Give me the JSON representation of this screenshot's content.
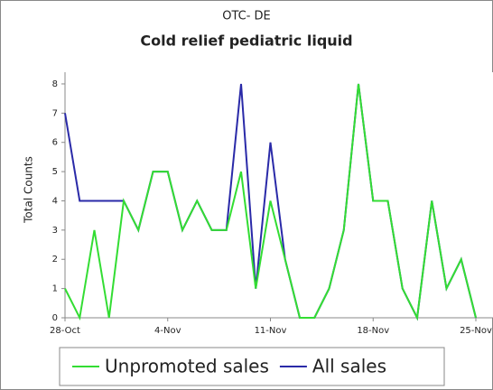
{
  "chart_data": {
    "type": "line",
    "title": "OTC- DE",
    "subtitle": "Cold relief pediatric liquid",
    "y_label": "Total Counts",
    "categories": [
      "28-Oct",
      null,
      null,
      null,
      null,
      null,
      null,
      "4-Nov",
      null,
      null,
      null,
      null,
      null,
      null,
      "11-Nov",
      null,
      null,
      null,
      null,
      null,
      null,
      "18-Nov",
      null,
      null,
      null,
      null,
      null,
      null,
      "25-Nov"
    ],
    "series": [
      {
        "name": "Unpromoted sales",
        "color": "#33dd33",
        "values": [
          1,
          0,
          3,
          0,
          4,
          3,
          5,
          5,
          3,
          4,
          3,
          3,
          5,
          1,
          4,
          2,
          0,
          0,
          1,
          3,
          8,
          4,
          4,
          1,
          0,
          4,
          1,
          2,
          0
        ]
      },
      {
        "name": "All sales",
        "color": "#2a2aa8",
        "values": [
          7,
          4,
          4,
          4,
          4,
          3,
          5,
          5,
          3,
          4,
          3,
          3,
          8,
          1,
          6,
          2,
          0,
          0,
          1,
          3,
          8,
          4,
          4,
          1,
          0,
          4,
          1,
          2,
          0
        ]
      }
    ],
    "ylim": [
      0,
      8.4
    ],
    "yticks": [
      0,
      1,
      2,
      3,
      4,
      5,
      6,
      7,
      8
    ],
    "legend": "bottom"
  }
}
